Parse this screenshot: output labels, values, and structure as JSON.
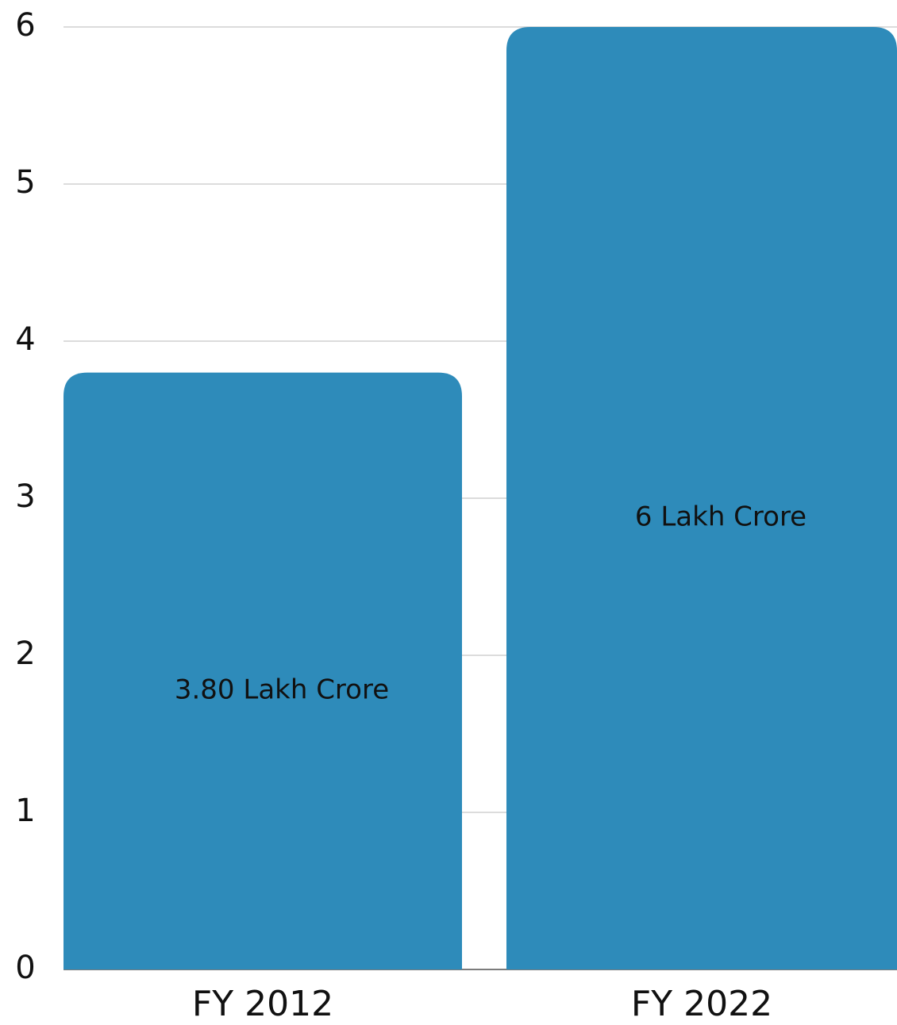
{
  "chart_data": {
    "type": "bar",
    "categories": [
      "FY 2012",
      "FY 2022"
    ],
    "values": [
      3.8,
      6
    ],
    "value_labels": [
      "3.80 Lakh Crore",
      "6 Lakh Crore"
    ],
    "color": "#2e8bba",
    "ylim": [
      0,
      6
    ],
    "yticks": [
      0,
      1,
      2,
      3,
      4,
      5,
      6
    ],
    "grid": true
  }
}
